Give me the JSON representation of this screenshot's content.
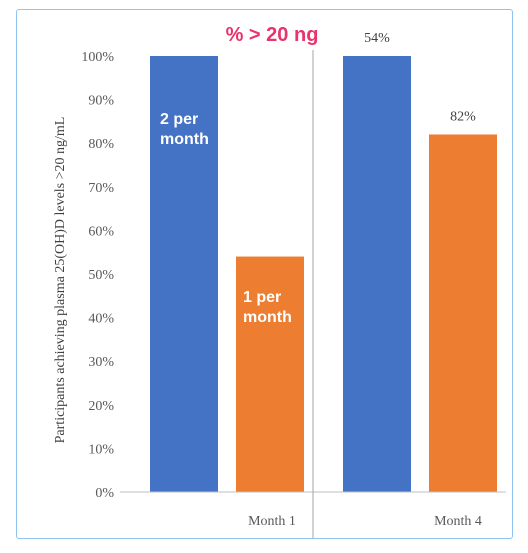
{
  "chart_data": {
    "type": "bar",
    "title": "% > 20 ng",
    "ylabel": "Participants achieving plasma 25(OH)D levels >20 ng/mL",
    "xlabel": "",
    "categories": [
      "Month 1",
      "Month 4"
    ],
    "series": [
      {
        "name": "2 per month",
        "color": "#4472c4",
        "values": [
          100,
          100
        ]
      },
      {
        "name": "1 per month",
        "color": "#ed7d31",
        "values": [
          54,
          82
        ]
      }
    ],
    "data_labels": [
      "",
      "",
      "54%",
      "82%"
    ],
    "ylim": [
      0,
      100
    ],
    "yticks": [
      "0%",
      "10%",
      "20%",
      "30%",
      "40%",
      "50%",
      "60%",
      "70%",
      "80%",
      "90%",
      "100%"
    ],
    "grid": false,
    "legend": "none"
  }
}
